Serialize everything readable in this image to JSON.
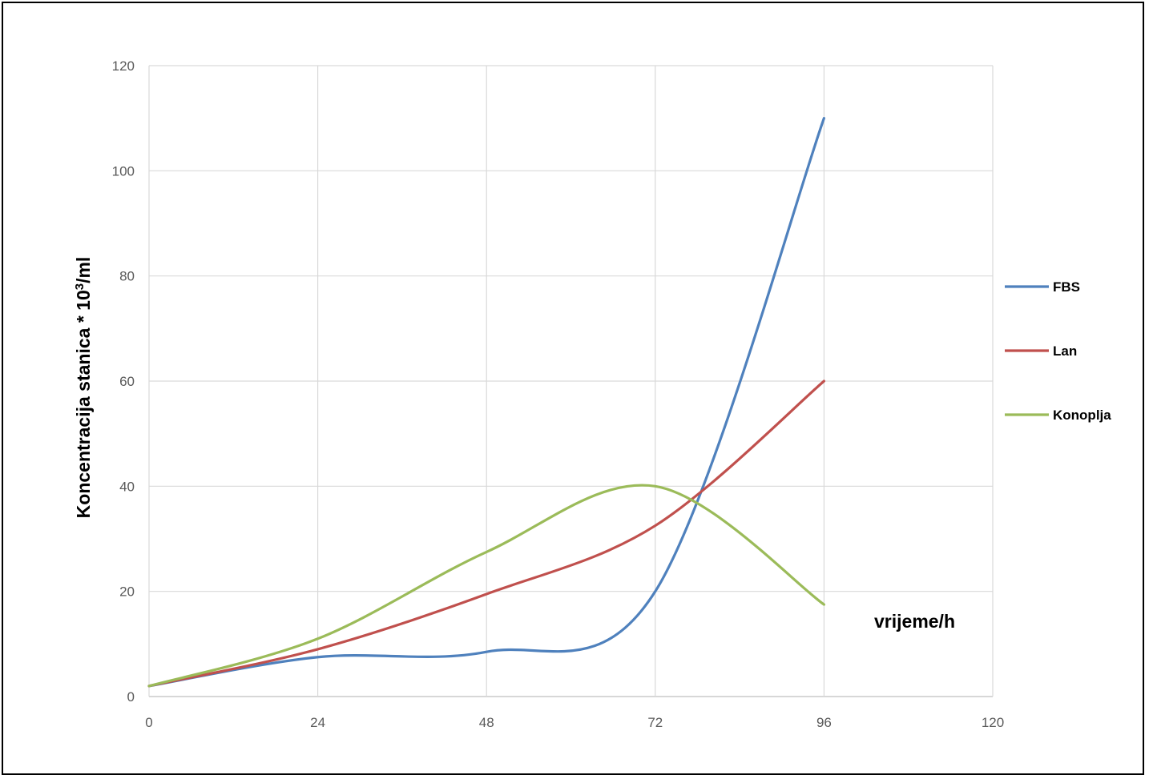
{
  "chart_data": {
    "type": "line",
    "title": "",
    "xlabel": "vrijeme/h",
    "ylabel": {
      "text": "Koncentracija stanica * 10",
      "sup": "3",
      "suffix": "/ml"
    },
    "xlim": [
      0,
      120
    ],
    "ylim": [
      0,
      120
    ],
    "x_ticks": [
      0,
      24,
      48,
      72,
      96,
      120
    ],
    "y_ticks": [
      0,
      20,
      40,
      60,
      80,
      100,
      120
    ],
    "grid": true,
    "smooth": true,
    "legend_position": "right",
    "series": [
      {
        "name": "FBS",
        "color": "#4f81bd",
        "x": [
          0,
          24,
          48,
          72,
          96
        ],
        "y": [
          2,
          7.5,
          8.5,
          20,
          110
        ]
      },
      {
        "name": "Lan",
        "color": "#c0504d",
        "x": [
          0,
          24,
          48,
          72,
          96
        ],
        "y": [
          2,
          9,
          19.5,
          32.5,
          60
        ]
      },
      {
        "name": "Konoplja",
        "color": "#9bbb59",
        "x": [
          0,
          24,
          48,
          72,
          96
        ],
        "y": [
          2,
          11,
          27.5,
          40,
          17.5
        ]
      }
    ]
  }
}
